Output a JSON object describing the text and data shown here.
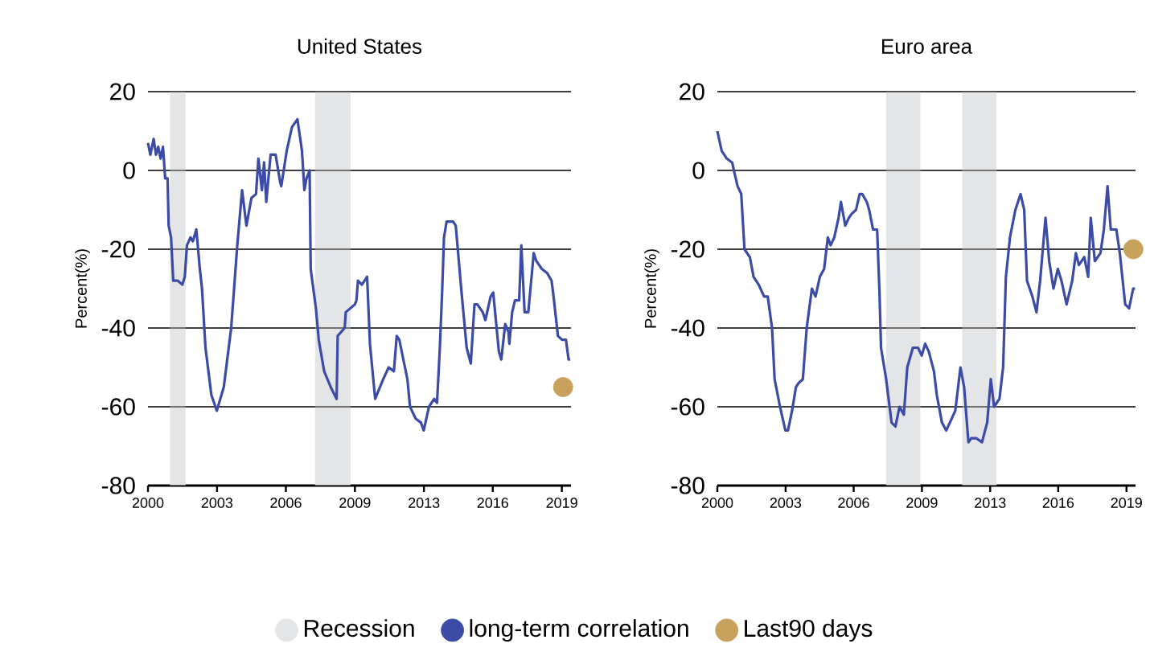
{
  "chart_data": [
    {
      "type": "line",
      "title": "United States",
      "ylabel": "Percent(%)",
      "xlim": [
        2000,
        2019.42
      ],
      "ylim": [
        -80,
        20
      ],
      "yticks": [
        -80,
        -60,
        -40,
        -20,
        0,
        20
      ],
      "xticks": [
        2000,
        {
          "value": 2003.17,
          "label": "2003"
        },
        {
          "value": 2006.33,
          "label": "2006"
        },
        {
          "value": 2009.5,
          "label": "2009"
        },
        {
          "value": 2012.67,
          "label": "2013"
        },
        {
          "value": 2015.83,
          "label": "2016"
        },
        2019
      ],
      "grid": "y",
      "legend": "bottom",
      "bands": [
        {
          "axis": "x",
          "from": 2001.01,
          "to": 2001.73,
          "color": "#e4e5e7",
          "label": "Recession"
        },
        {
          "axis": "x",
          "from": 2007.67,
          "to": 2009.3,
          "color": "#e4e5e7"
        }
      ],
      "series": [
        {
          "name": "long-term correlation",
          "color": "#3b4ba6",
          "line_style": "solid",
          "x": [
            2000.0,
            2000.11,
            2000.26,
            2000.37,
            2000.47,
            2000.58,
            2000.69,
            2000.79,
            2000.9,
            2000.95,
            2001.06,
            2001.16,
            2001.37,
            2001.58,
            2001.69,
            2001.79,
            2001.95,
            2002.06,
            2002.22,
            2002.38,
            2002.48,
            2002.64,
            2002.91,
            2003.16,
            2003.48,
            2003.82,
            2004.1,
            2004.32,
            2004.52,
            2004.75,
            2004.96,
            2005.07,
            2005.23,
            2005.33,
            2005.43,
            2005.63,
            2005.86,
            2006.07,
            2006.12,
            2006.37,
            2006.61,
            2006.86,
            2007.07,
            2007.18,
            2007.28,
            2007.42,
            2007.47,
            2007.71,
            2007.84,
            2008.09,
            2008.39,
            2008.66,
            2008.71,
            2009.03,
            2009.08,
            2009.5,
            2009.57,
            2009.64,
            2009.82,
            2010.06,
            2010.19,
            2010.43,
            2010.8,
            2011.05,
            2011.29,
            2011.42,
            2011.54,
            2011.91,
            2012.03,
            2012.29,
            2012.53,
            2012.66,
            2012.9,
            2013.14,
            2013.27,
            2013.4,
            2013.51,
            2013.59,
            2013.71,
            2014.01,
            2014.13,
            2014.38,
            2014.63,
            2014.82,
            2014.99,
            2015.12,
            2015.37,
            2015.49,
            2015.73,
            2015.85,
            2016.11,
            2016.22,
            2016.4,
            2016.55,
            2016.59,
            2016.72,
            2016.85,
            2017.04,
            2017.14,
            2017.29,
            2017.46,
            2017.71,
            2017.83,
            2018.08,
            2018.32,
            2018.53,
            2018.62,
            2018.82,
            2019.01,
            2019.19,
            2019.31,
            2019.38
          ],
          "values": [
            7,
            4,
            8,
            4,
            6,
            3,
            6,
            -2,
            -2,
            -14,
            -17,
            -28,
            -28,
            -29,
            -27,
            -19,
            -17,
            -18,
            -15,
            -25,
            -30,
            -45,
            -57,
            -61,
            -55,
            -40,
            -19,
            -5,
            -14,
            -7,
            -6,
            3,
            -5,
            2,
            -8,
            4,
            4,
            -3,
            -4,
            5,
            11,
            13,
            5,
            -5,
            -2,
            0,
            -25,
            -35,
            -43,
            -51,
            -55,
            -58,
            -42,
            -40,
            -36,
            -34,
            -33,
            -28,
            -29,
            -27,
            -44,
            -58,
            -53,
            -50,
            -51,
            -42,
            -43,
            -53,
            -60,
            -63,
            -64,
            -66,
            -60,
            -58,
            -59,
            -45,
            -30,
            -17,
            -13,
            -13,
            -14,
            -30,
            -45,
            -49,
            -34,
            -34,
            -36,
            -38,
            -32,
            -31,
            -46,
            -48,
            -39,
            -41,
            -44,
            -36,
            -33,
            -33,
            -19,
            -36,
            -36,
            -21,
            -23,
            -25,
            -26,
            -28,
            -32,
            -42,
            -43,
            -43,
            -48,
            -48
          ]
        },
        {
          "type": "scatter",
          "name": "Last90 days",
          "color": "#c8a15d",
          "marker": "circle",
          "x": [
            2019.06
          ],
          "values": [
            -55
          ]
        }
      ]
    },
    {
      "type": "line",
      "title": "Euro area",
      "ylabel": "Percent(%)",
      "xlim": [
        2000,
        2019.42
      ],
      "ylim": [
        -80,
        20
      ],
      "yticks": [
        -80,
        -60,
        -40,
        -20,
        0,
        20
      ],
      "xticks": [
        2000,
        {
          "value": 2003.17,
          "label": "2003"
        },
        {
          "value": 2006.33,
          "label": "2006"
        },
        {
          "value": 2009.5,
          "label": "2009"
        },
        {
          "value": 2012.67,
          "label": "2013"
        },
        {
          "value": 2015.83,
          "label": "2016"
        },
        2019
      ],
      "grid": "y",
      "bands": [
        {
          "axis": "x",
          "from": 2007.84,
          "to": 2009.43,
          "color": "#e4e5e7"
        },
        {
          "axis": "x",
          "from": 2011.37,
          "to": 2012.97,
          "color": "#e4e5e7"
        }
      ],
      "series": [
        {
          "color": "#3b4ba6",
          "line_style": "solid",
          "x": [
            2000.0,
            2000.2,
            2000.44,
            2000.69,
            2000.81,
            2000.94,
            2001.11,
            2001.26,
            2001.51,
            2001.68,
            2001.92,
            2002.17,
            2002.34,
            2002.54,
            2002.66,
            2002.91,
            2003.16,
            2003.28,
            2003.47,
            2003.65,
            2003.77,
            2003.97,
            2004.15,
            2004.39,
            2004.56,
            2004.76,
            2004.96,
            2005.13,
            2005.26,
            2005.43,
            2005.63,
            2005.74,
            2005.94,
            2006.11,
            2006.24,
            2006.44,
            2006.61,
            2006.73,
            2006.94,
            2007.05,
            2007.23,
            2007.42,
            2007.53,
            2007.6,
            2007.84,
            2008.09,
            2008.27,
            2008.46,
            2008.66,
            2008.82,
            2009.08,
            2009.32,
            2009.49,
            2009.65,
            2009.82,
            2010.06,
            2010.19,
            2010.43,
            2010.63,
            2010.8,
            2011.05,
            2011.29,
            2011.46,
            2011.66,
            2011.79,
            2012.03,
            2012.29,
            2012.53,
            2012.7,
            2012.85,
            2013.1,
            2013.27,
            2013.4,
            2013.59,
            2013.84,
            2014.08,
            2014.25,
            2014.38,
            2014.63,
            2014.82,
            2014.99,
            2015.24,
            2015.41,
            2015.61,
            2015.81,
            2015.98,
            2016.22,
            2016.48,
            2016.65,
            2016.79,
            2017.04,
            2017.22,
            2017.34,
            2017.53,
            2017.79,
            2017.95,
            2018.12,
            2018.27,
            2018.53,
            2018.69,
            2018.94,
            2019.12,
            2019.31,
            2019.4
          ],
          "values": [
            10,
            5,
            3,
            2,
            -1,
            -4,
            -6,
            -20,
            -22,
            -27,
            -29,
            -32,
            -32,
            -40,
            -53,
            -60,
            -66,
            -66,
            -61,
            -55,
            -54,
            -53,
            -40,
            -30,
            -32,
            -27,
            -25,
            -17,
            -19,
            -17,
            -12,
            -8,
            -14,
            -12,
            -11,
            -10,
            -6,
            -6,
            -8,
            -10,
            -15,
            -15,
            -31,
            -45,
            -53,
            -64,
            -65,
            -60,
            -62,
            -50,
            -45,
            -45,
            -47,
            -44,
            -46,
            -51,
            -57,
            -64,
            -66,
            -64,
            -61,
            -50,
            -55,
            -69,
            -68,
            -68,
            -69,
            -64,
            -53,
            -60,
            -58,
            -50,
            -27,
            -17,
            -10,
            -6,
            -10,
            -28,
            -32,
            -36,
            -28,
            -12,
            -23,
            -30,
            -25,
            -28,
            -34,
            -28,
            -21,
            -24,
            -22,
            -27,
            -12,
            -23,
            -21,
            -15,
            -4,
            -15,
            -15,
            -21,
            -34,
            -35,
            -30,
            -30
          ]
        },
        {
          "type": "scatter",
          "color": "#c8a15d",
          "marker": "circle",
          "x": [
            2019.32
          ],
          "values": [
            -20
          ]
        }
      ]
    }
  ]
}
